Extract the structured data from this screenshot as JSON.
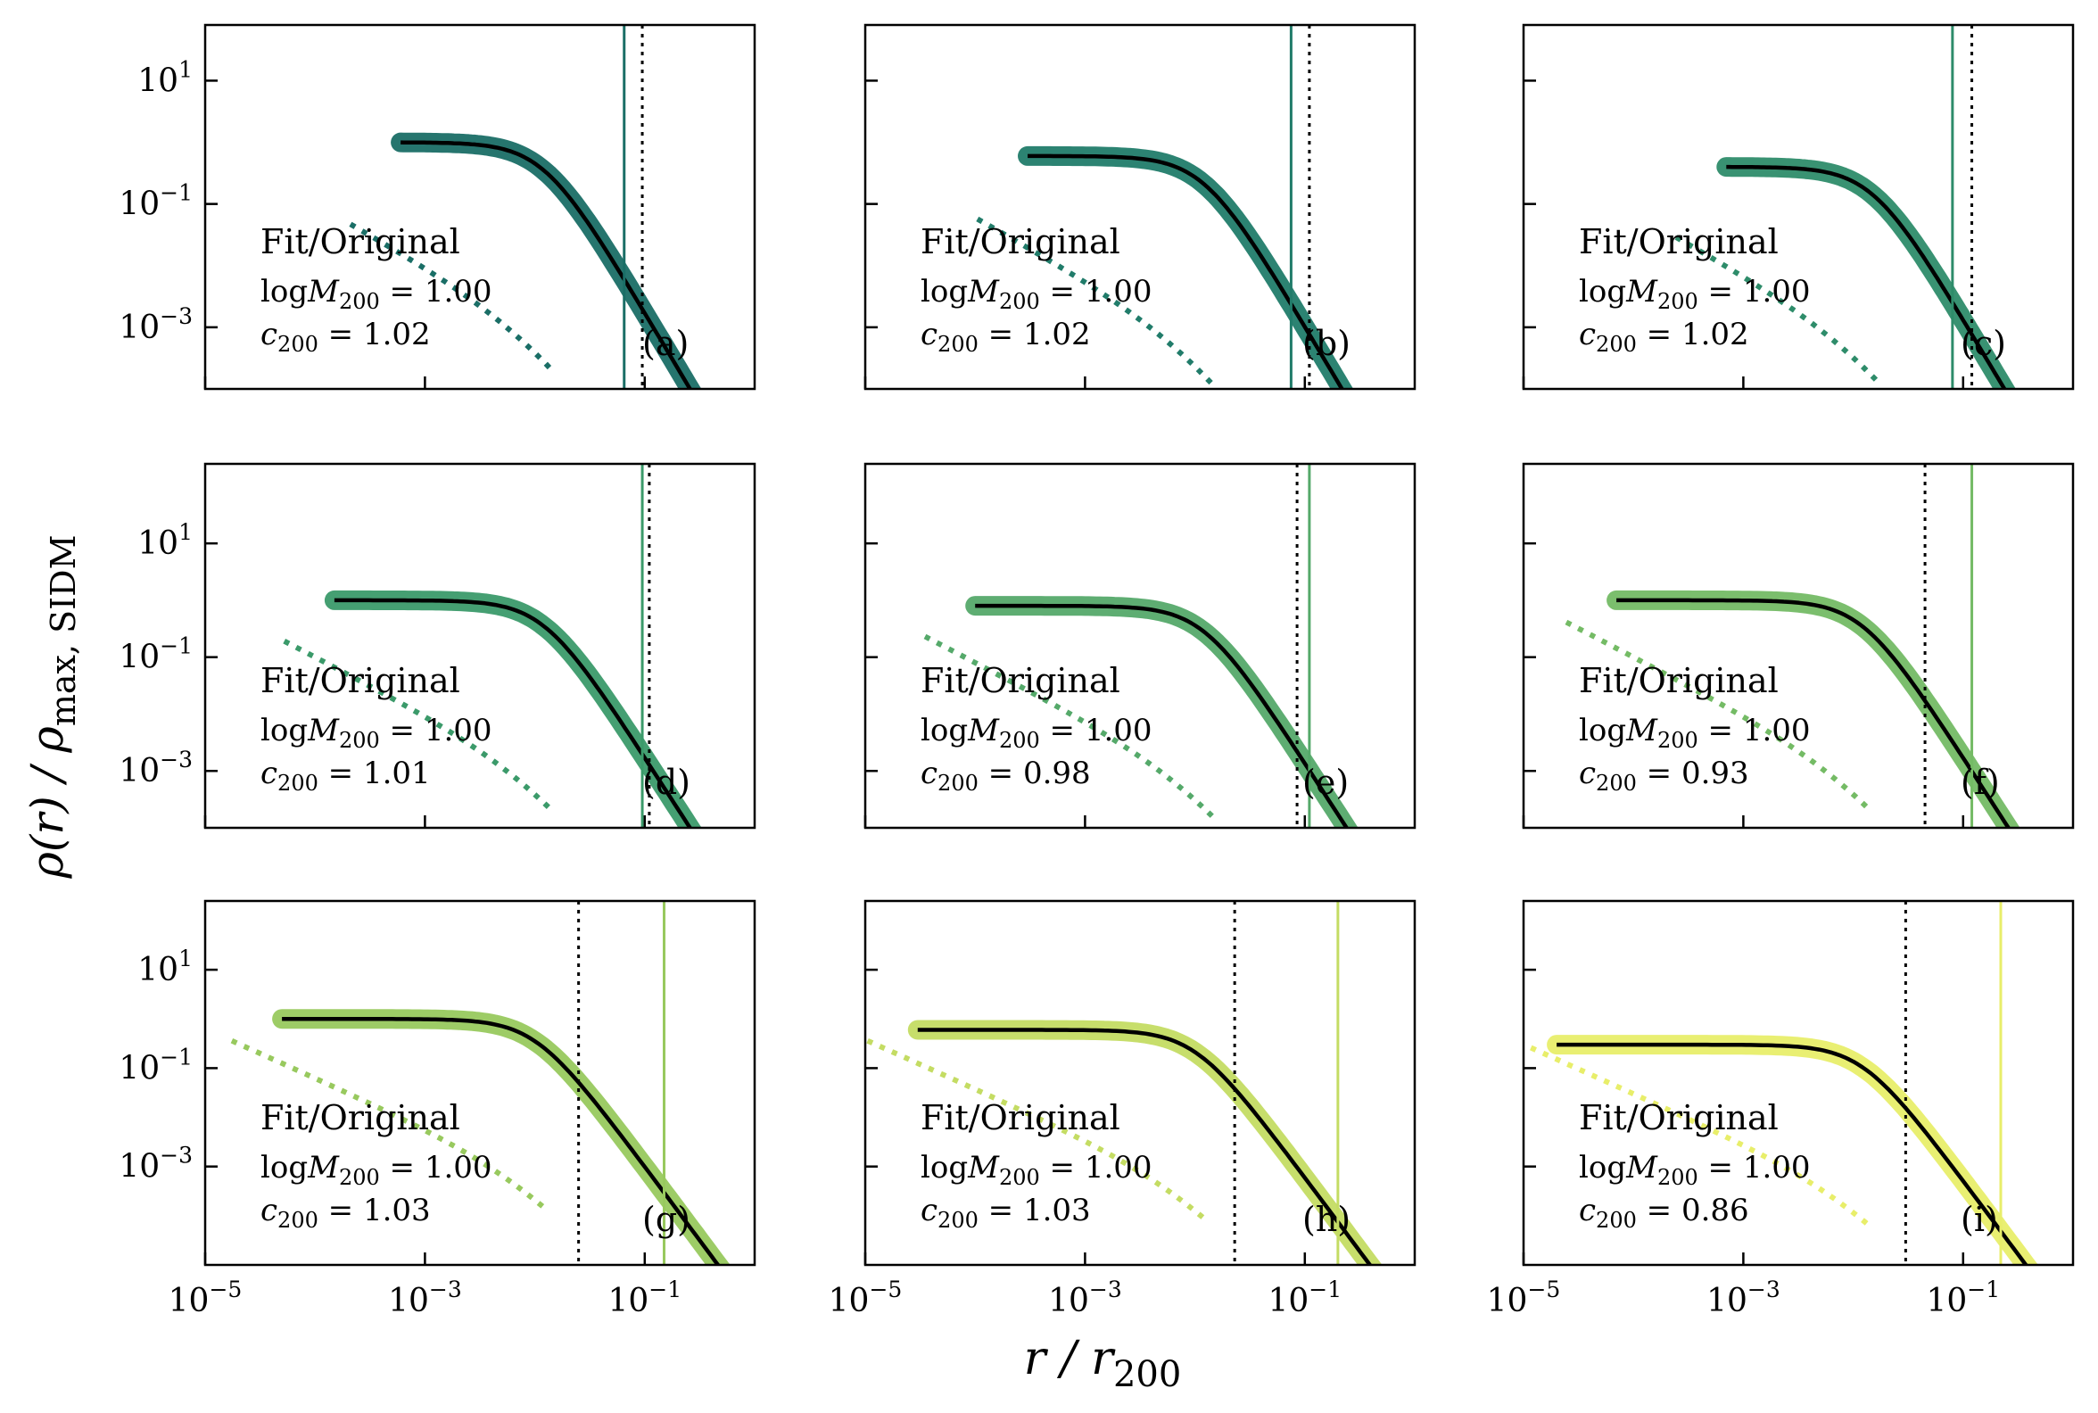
{
  "figure": {
    "ylabel": {
      "prefix": "ρ(r) / ρ",
      "sub": "max, SIDM"
    },
    "xlabel": {
      "prefix": "r / r",
      "sub": "200"
    }
  },
  "chart_data": [
    {
      "panel": "(a)",
      "type": "line",
      "text": "Fit/Original",
      "logM200": "1.00",
      "c200": "1.02",
      "r_start": 0.0006,
      "rho0": 1.0,
      "r_core": 0.012,
      "solid_line": 0.065,
      "dotted_line": 0.095,
      "color": "#1a6e66",
      "xlim": [
        1e-05,
        1
      ],
      "ylim": [
        0.0001,
        80
      ],
      "yticks": [
        "10^1",
        "10^-1",
        "10^-3"
      ],
      "xticks": []
    },
    {
      "panel": "(b)",
      "type": "line",
      "text": "Fit/Original",
      "logM200": "1.00",
      "c200": "1.02",
      "r_start": 0.0003,
      "rho0": 0.6,
      "r_core": 0.012,
      "solid_line": 0.075,
      "dotted_line": 0.11,
      "color": "#217c6a",
      "xlim": [
        1e-05,
        1
      ],
      "ylim": [
        0.0001,
        80
      ],
      "yticks": [],
      "xticks": []
    },
    {
      "panel": "(c)",
      "type": "line",
      "text": "Fit/Original",
      "logM200": "1.00",
      "c200": "1.02",
      "r_start": 0.0007,
      "rho0": 0.4,
      "r_core": 0.015,
      "solid_line": 0.08,
      "dotted_line": 0.12,
      "color": "#2e8c6a",
      "xlim": [
        1e-05,
        1
      ],
      "ylim": [
        0.0001,
        80
      ],
      "yticks": [],
      "xticks": []
    },
    {
      "panel": "(d)",
      "type": "line",
      "text": "Fit/Original",
      "logM200": "1.00",
      "c200": "1.01",
      "r_start": 0.00015,
      "rho0": 1.0,
      "r_core": 0.012,
      "solid_line": 0.095,
      "dotted_line": 0.11,
      "color": "#3b9a6a",
      "xlim": [
        1e-05,
        1
      ],
      "ylim": [
        0.0001,
        250
      ],
      "yticks": [
        "10^1",
        "10^-1",
        "10^-3"
      ],
      "xticks": []
    },
    {
      "panel": "(e)",
      "type": "line",
      "text": "Fit/Original",
      "logM200": "1.00",
      "c200": "0.98",
      "r_start": 0.0001,
      "rho0": 0.8,
      "r_core": 0.012,
      "solid_line": 0.11,
      "dotted_line": 0.085,
      "color": "#55a96a",
      "xlim": [
        1e-05,
        1
      ],
      "ylim": [
        0.0001,
        250
      ],
      "yticks": [],
      "xticks": []
    },
    {
      "panel": "(f)",
      "type": "line",
      "text": "Fit/Original",
      "logM200": "1.00",
      "c200": "0.93",
      "r_start": 7e-05,
      "rho0": 1.0,
      "r_core": 0.012,
      "solid_line": 0.12,
      "dotted_line": 0.045,
      "color": "#74bb65",
      "xlim": [
        1e-05,
        1
      ],
      "ylim": [
        0.0001,
        250
      ],
      "yticks": [],
      "xticks": []
    },
    {
      "panel": "(g)",
      "type": "line",
      "text": "Fit/Original",
      "logM200": "1.00",
      "c200": "1.03",
      "r_start": 5e-05,
      "rho0": 1.0,
      "r_core": 0.01,
      "solid_line": 0.15,
      "dotted_line": 0.025,
      "color": "#98c95e",
      "xlim": [
        1e-05,
        1
      ],
      "ylim": [
        1e-05,
        250
      ],
      "yticks": [
        "10^1",
        "10^-1",
        "10^-3"
      ],
      "xticks": [
        "10^-5",
        "10^-3",
        "10^-1"
      ]
    },
    {
      "panel": "(h)",
      "type": "line",
      "text": "Fit/Original",
      "logM200": "1.00",
      "c200": "1.03",
      "r_start": 3e-05,
      "rho0": 0.6,
      "r_core": 0.01,
      "solid_line": 0.2,
      "dotted_line": 0.023,
      "color": "#c4dc63",
      "xlim": [
        1e-05,
        1
      ],
      "ylim": [
        1e-05,
        250
      ],
      "yticks": [],
      "xticks": [
        "10^-5",
        "10^-3",
        "10^-1"
      ]
    },
    {
      "panel": "(i)",
      "type": "line",
      "text": "Fit/Original",
      "logM200": "1.00",
      "c200": "0.86",
      "r_start": 2e-05,
      "rho0": 0.3,
      "r_core": 0.012,
      "solid_line": 0.22,
      "dotted_line": 0.03,
      "color": "#e8ee6a",
      "xlim": [
        1e-05,
        1
      ],
      "ylim": [
        1e-05,
        250
      ],
      "yticks": [],
      "xticks": [
        "10^-5",
        "10^-3",
        "10^-1"
      ]
    }
  ]
}
